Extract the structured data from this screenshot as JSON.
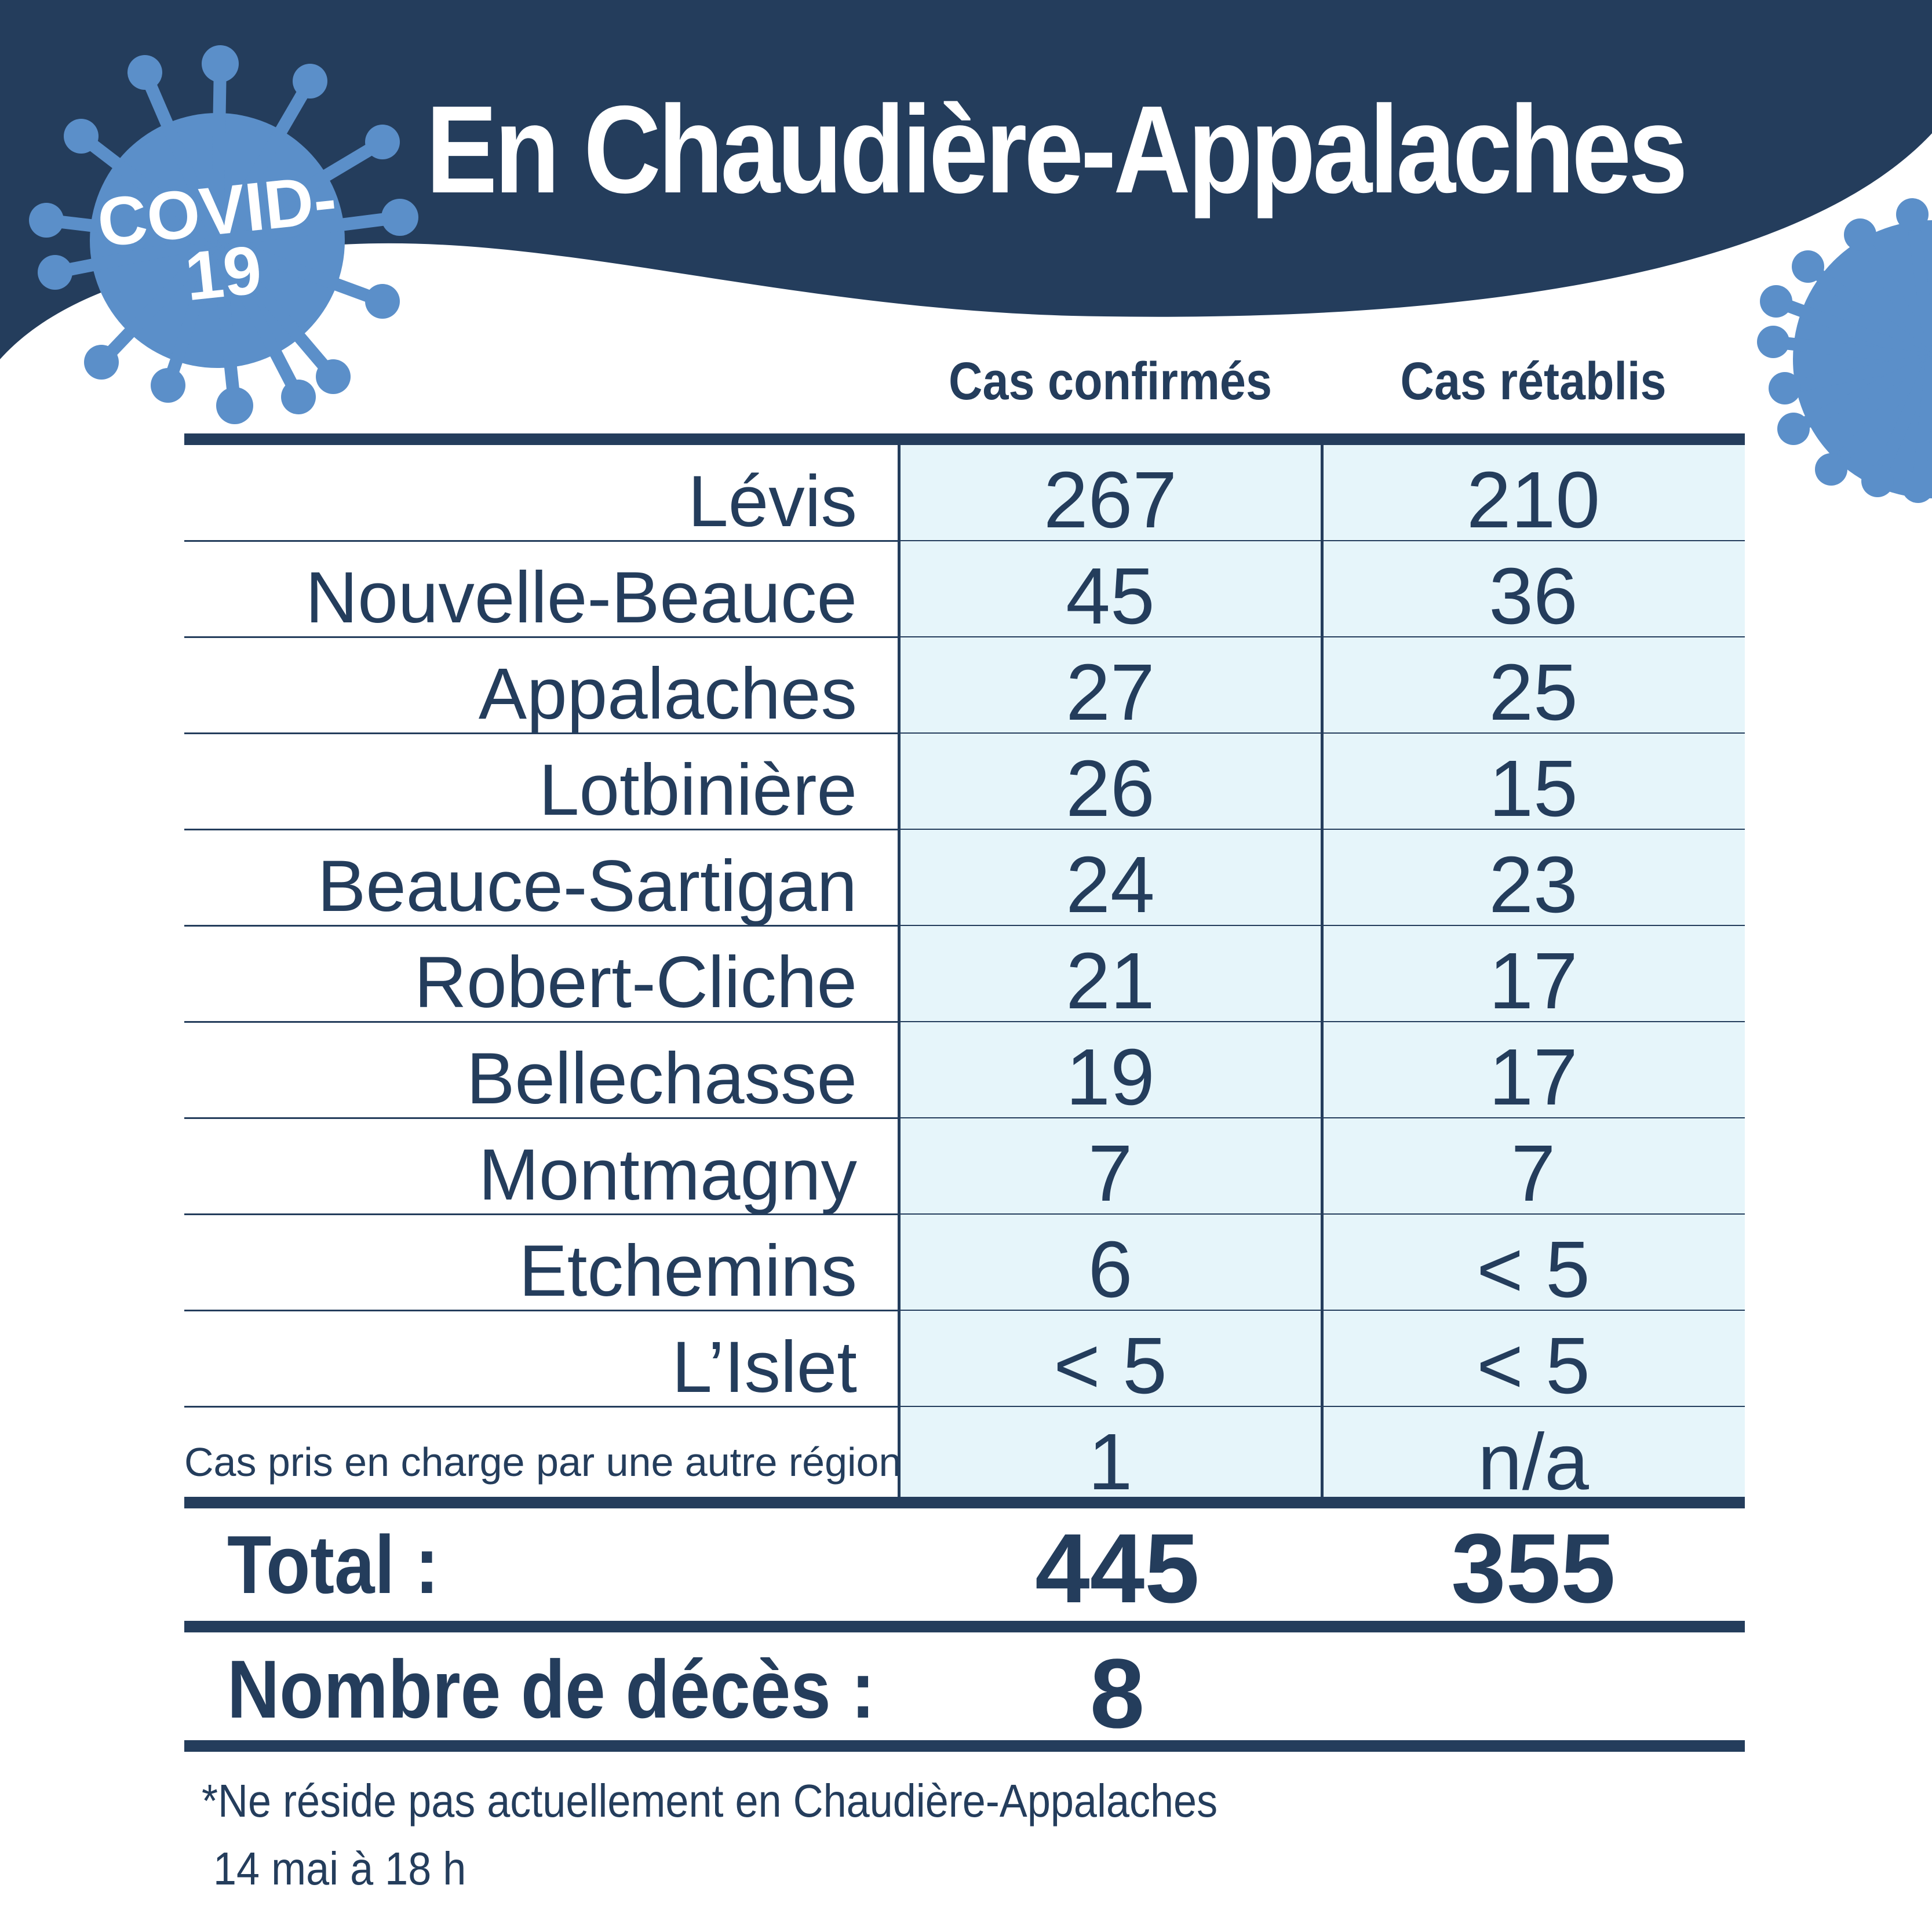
{
  "header": {
    "title": "En Chaudière-Appalaches",
    "badge_line1": "COVID-",
    "badge_line2": "19",
    "colors": {
      "navy": "#243d5c",
      "virus_blue": "#5b8fc9",
      "cell_bg": "#e6f5fa"
    }
  },
  "columns": {
    "confirmed": "Cas confirmés",
    "recovered": "Cas rétablis"
  },
  "rows": [
    {
      "name": "Lévis",
      "confirmed": "267",
      "recovered": "210"
    },
    {
      "name": "Nouvelle-Beauce",
      "confirmed": "45",
      "recovered": "36"
    },
    {
      "name": "Appalaches",
      "confirmed": "27",
      "recovered": "25"
    },
    {
      "name": "Lotbinière",
      "confirmed": "26",
      "recovered": "15"
    },
    {
      "name": "Beauce-Sartigan",
      "confirmed": "24",
      "recovered": "23"
    },
    {
      "name": "Robert-Cliche",
      "confirmed": "21",
      "recovered": "17"
    },
    {
      "name": "Bellechasse",
      "confirmed": "19",
      "recovered": "17"
    },
    {
      "name": "Montmagny",
      "confirmed": "7",
      "recovered": "7"
    },
    {
      "name": "Etchemins",
      "confirmed": "6",
      "recovered": "< 5"
    },
    {
      "name": "L’Islet",
      "confirmed": "< 5",
      "recovered": "< 5"
    },
    {
      "name": "Cas pris en charge par une autre région*",
      "confirmed": "1",
      "recovered": "n/a"
    }
  ],
  "totals": {
    "label": "Total :",
    "confirmed": "445",
    "recovered": "355"
  },
  "deaths": {
    "label": "Nombre de décès :",
    "value": "8"
  },
  "footnote": "*Ne réside pas actuellement en Chaudière-Appalaches",
  "date": "14 mai à 18 h"
}
